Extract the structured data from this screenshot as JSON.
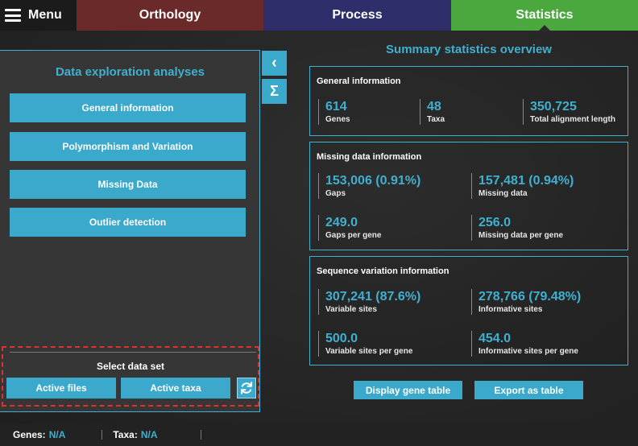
{
  "topbar": {
    "menu_label": "Menu",
    "tabs": [
      {
        "label": "Orthology",
        "color": "#6b2a2a"
      },
      {
        "label": "Process",
        "color": "#2d2e6a"
      },
      {
        "label": "Statistics",
        "color": "#4aa83e",
        "active": true
      }
    ]
  },
  "left_panel": {
    "title": "Data exploration analyses",
    "buttons": [
      {
        "label": "General information"
      },
      {
        "label": "Polymorphism and Variation"
      },
      {
        "label": "Missing Data"
      },
      {
        "label": "Outlier detection"
      }
    ]
  },
  "side_buttons": [
    {
      "icon": "chevron-left-icon",
      "glyph": "‹"
    },
    {
      "icon": "sigma-icon",
      "glyph": "Σ"
    }
  ],
  "dataset": {
    "title": "Select data set",
    "active_files": "Active files",
    "active_taxa": "Active taxa",
    "refresh_icon": "refresh-icon"
  },
  "summary": {
    "title": "Summary statistics overview",
    "general": {
      "title": "General information",
      "stats": [
        {
          "value": "614",
          "label": "Genes"
        },
        {
          "value": "48",
          "label": "Taxa"
        },
        {
          "value": "350,725",
          "label": "Total alignment length"
        }
      ]
    },
    "missing": {
      "title": "Missing data information",
      "stats": [
        {
          "value": "153,006 (0.91%)",
          "label": "Gaps"
        },
        {
          "value": "157,481 (0.94%)",
          "label": "Missing data"
        },
        {
          "value": "249.0",
          "label": "Gaps per gene"
        },
        {
          "value": "256.0",
          "label": "Missing data per gene"
        }
      ]
    },
    "variation": {
      "title": "Sequence variation information",
      "stats": [
        {
          "value": "307,241 (87.6%)",
          "label": "Variable sites"
        },
        {
          "value": "278,766 (79.48%)",
          "label": "Informative sites"
        },
        {
          "value": "500.0",
          "label": "Variable sites per gene"
        },
        {
          "value": "454.0",
          "label": "Informative sites per gene"
        }
      ]
    }
  },
  "actions": {
    "display_gene_table": "Display gene table",
    "export_as_table": "Export as table"
  },
  "footer": {
    "genes_label": "Genes:",
    "genes_value": "N/A",
    "taxa_label": "Taxa:",
    "taxa_value": "N/A"
  },
  "colors": {
    "accent": "#3fb0d0",
    "button": "#3aa9cc",
    "highlight_border": "#e0322d"
  }
}
